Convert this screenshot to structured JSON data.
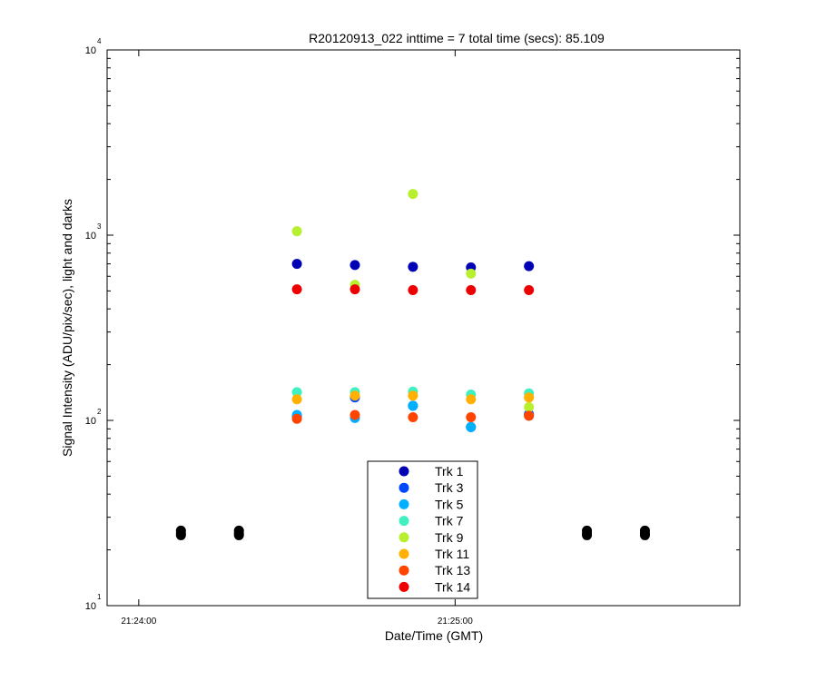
{
  "chart_data": {
    "type": "scatter",
    "title": "R20120913_022 inttime = 7 total time (secs): 85.109",
    "xlabel": "Date/Time (GMT)",
    "ylabel": "Signal Intensity (ADU/pix/sec), light and darks",
    "yscale": "log",
    "ylim": [
      10,
      10000
    ],
    "xlim": [
      "21:23:54",
      "21:25:54"
    ],
    "x_ticks": [
      "21:24:00",
      "21:25:00"
    ],
    "y_ticks": [
      {
        "base": "10",
        "exp": "1",
        "value": 10
      },
      {
        "base": "10",
        "exp": "2",
        "value": 100
      },
      {
        "base": "10",
        "exp": "3",
        "value": 1000
      },
      {
        "base": "10",
        "exp": "4",
        "value": 10000
      }
    ],
    "grid": false,
    "legend_position": "bottom-center",
    "series": [
      {
        "name": "Trk 1",
        "color": "#0000b4",
        "x": [
          "21:24:30",
          "21:24:41",
          "21:24:52",
          "21:25:03",
          "21:25:14"
        ],
        "y": [
          700,
          690,
          675,
          670,
          680
        ]
      },
      {
        "name": "Trk 3",
        "color": "#0048ff",
        "x": [
          "21:24:30",
          "21:24:41",
          "21:24:52",
          "21:25:03",
          "21:25:14"
        ],
        "y": [
          105,
          133,
          120,
          92,
          108
        ]
      },
      {
        "name": "Trk 5",
        "color": "#00b0ff",
        "x": [
          "21:24:30",
          "21:24:41",
          "21:24:52",
          "21:25:03",
          "21:25:14"
        ],
        "y": [
          107,
          103,
          120,
          92,
          106
        ]
      },
      {
        "name": "Trk 7",
        "color": "#40f0c0",
        "x": [
          "21:24:30",
          "21:24:41",
          "21:24:52",
          "21:25:03",
          "21:25:14"
        ],
        "y": [
          142,
          142,
          143,
          138,
          140
        ]
      },
      {
        "name": "Trk 9",
        "color": "#b8f030",
        "x": [
          "21:24:30",
          "21:24:41",
          "21:24:52",
          "21:25:03",
          "21:25:14"
        ],
        "y": [
          1050,
          540,
          1670,
          620,
          118
        ]
      },
      {
        "name": "Trk 11",
        "color": "#ffb000",
        "x": [
          "21:24:30",
          "21:24:41",
          "21:24:52",
          "21:25:03",
          "21:25:14"
        ],
        "y": [
          130,
          136,
          136,
          130,
          133
        ]
      },
      {
        "name": "Trk 13",
        "color": "#ff4400",
        "x": [
          "21:24:30",
          "21:24:41",
          "21:24:52",
          "21:25:03",
          "21:25:14"
        ],
        "y": [
          102,
          107,
          104,
          104,
          106
        ]
      },
      {
        "name": "Trk 14",
        "color": "#ee0000",
        "x": [
          "21:24:30",
          "21:24:41",
          "21:24:52",
          "21:25:03",
          "21:25:14"
        ],
        "y": [
          510,
          510,
          505,
          505,
          505
        ]
      },
      {
        "name": "",
        "color": "#000000",
        "x": [
          "21:24:08",
          "21:24:19",
          "21:25:25",
          "21:25:36"
        ],
        "y": [
          24.6,
          24.6,
          24.6,
          24.6
        ]
      },
      {
        "name": "",
        "color": "#000000",
        "x": [
          "21:24:08",
          "21:24:19",
          "21:25:25",
          "21:25:36"
        ],
        "y": [
          25.4,
          25.4,
          25.4,
          25.4
        ]
      },
      {
        "name": "",
        "color": "#000000",
        "x": [
          "21:24:08",
          "21:24:19",
          "21:25:25",
          "21:25:36"
        ],
        "y": [
          24.0,
          24.0,
          24.0,
          24.0
        ]
      }
    ]
  }
}
